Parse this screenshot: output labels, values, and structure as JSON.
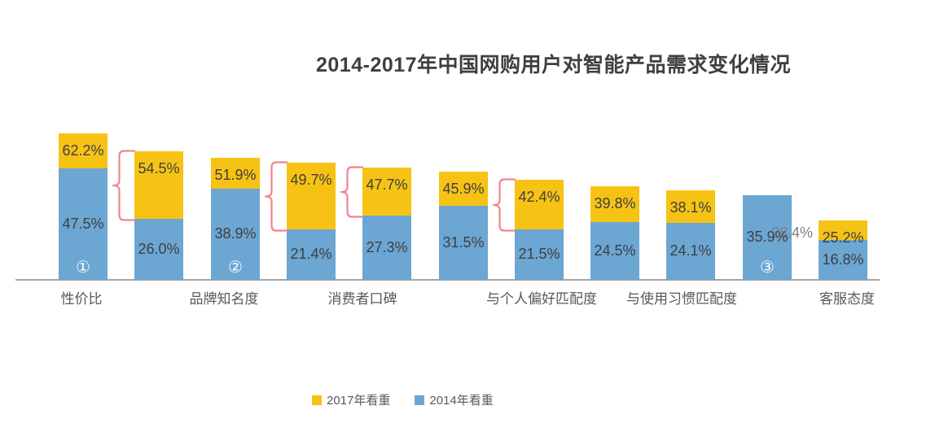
{
  "colors": {
    "bar_2017": "#F6C315",
    "bar_2014": "#6CA6D3",
    "brace": "#F0858F",
    "axis": "#A6A6A6",
    "title_text": "#3F3F3F",
    "value_text": "#3F3F3F",
    "muted_value_text": "#7F7F7F",
    "category_text": "#595959",
    "marker_text": "#FFFFFF"
  },
  "chart_data": {
    "type": "bar",
    "title": "2014-2017年中国网购用户对智能产品需求变化情况",
    "value_suffix": "%",
    "ylim": [
      0,
      65
    ],
    "grid": false,
    "legend_position": "bottom-center",
    "series": [
      {
        "name": "2017年看重",
        "color": "#F6C315"
      },
      {
        "name": "2014年看重",
        "color": "#6CA6D3"
      }
    ],
    "bars": [
      {
        "category": "性价比",
        "v2017": 62.2,
        "v2014": 47.5,
        "marker": "①",
        "brace": false
      },
      {
        "category": "",
        "v2017": 54.5,
        "v2014": 26.0,
        "marker": "",
        "brace": true
      },
      {
        "category": "品牌知名度",
        "v2017": 51.9,
        "v2014": 38.9,
        "marker": "②",
        "brace": false
      },
      {
        "category": "",
        "v2017": 49.7,
        "v2014": 21.4,
        "marker": "",
        "brace": true
      },
      {
        "category": "消费者口碑",
        "v2017": 47.7,
        "v2014": 27.3,
        "marker": "",
        "brace": true
      },
      {
        "category": "",
        "v2017": 45.9,
        "v2014": 31.5,
        "marker": "",
        "brace": false
      },
      {
        "category": "与个人偏好匹配度",
        "v2017": 42.4,
        "v2014": 21.5,
        "marker": "",
        "brace": true
      },
      {
        "category": "",
        "v2017": 39.8,
        "v2014": 24.5,
        "marker": "",
        "brace": false
      },
      {
        "category": "与使用习惯匹配度",
        "v2017": 38.1,
        "v2014": 24.1,
        "marker": "",
        "brace": false
      },
      {
        "category": "",
        "v2017": 28.4,
        "v2014": 35.9,
        "marker": "③",
        "brace": false
      },
      {
        "category": "客服态度",
        "v2017": 25.2,
        "v2014": 16.8,
        "marker": "",
        "brace": false
      }
    ]
  }
}
